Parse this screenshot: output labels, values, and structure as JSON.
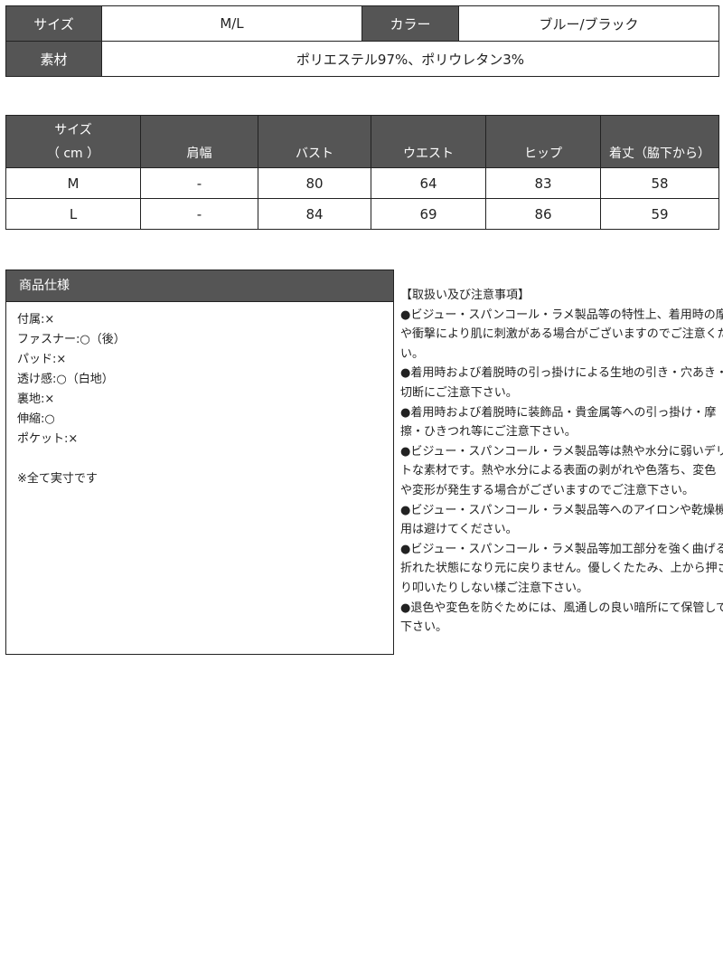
{
  "product_info": {
    "size_label": "サイズ",
    "size_value": "M/L",
    "color_label": "カラー",
    "color_value": "ブルー/ブラック",
    "material_label": "素材",
    "material_value": "ポリエステル97%、ポリウレタン3%"
  },
  "size_table": {
    "headers": [
      "サイズ\n（ cm ）",
      "肩幅",
      "バスト",
      "ウエスト",
      "ヒップ",
      "着丈（脇下から）"
    ],
    "header_size_line1": "サイズ",
    "header_size_line2": "（ cm ）",
    "rows": [
      [
        "M",
        "-",
        "80",
        "64",
        "83",
        "58"
      ],
      [
        "L",
        "-",
        "84",
        "69",
        "86",
        "59"
      ]
    ]
  },
  "specs": {
    "title": "商品仕様",
    "lines": [
      "付属:×",
      "ファスナー:○（後）",
      "パッド:×",
      "透け感:○（白地）",
      "裏地:×",
      "伸縮:○",
      "ポケット:×",
      "",
      "※全て実寸です"
    ]
  },
  "notes": {
    "lines": [
      "【取扱い及び注意事項】",
      "●ビジュー・スパンコール・ラメ製品等の特性上、着用時の摩擦",
      "や衝撃により肌に刺激がある場合がございますのでご注意くださ",
      "い。",
      "●着用時および着脱時の引っ掛けによる生地の引き・穴あき・",
      "切断にご注意下さい。",
      "●着用時および着脱時に装飾品・貴金属等への引っ掛け・摩",
      "擦・ひきつれ等にご注意下さい。",
      "●ビジュー・スパンコール・ラメ製品等は熱や水分に弱いデリケー",
      "トな素材です。熱や水分による表面の剥がれや色落ち、変色",
      "や変形が発生する場合がございますのでご注意下さい。",
      "●ビジュー・スパンコール・ラメ製品等へのアイロンや乾燥機の使",
      "用は避けてください。",
      "●ビジュー・スパンコール・ラメ製品等加工部分を強く曲げると",
      "折れた状態になり元に戻りません。優しくたたみ、上から押さえた",
      "り叩いたりしない様ご注意下さい。",
      "●退色や変色を防ぐためには、風通しの良い暗所にて保管して",
      "下さい。"
    ]
  }
}
